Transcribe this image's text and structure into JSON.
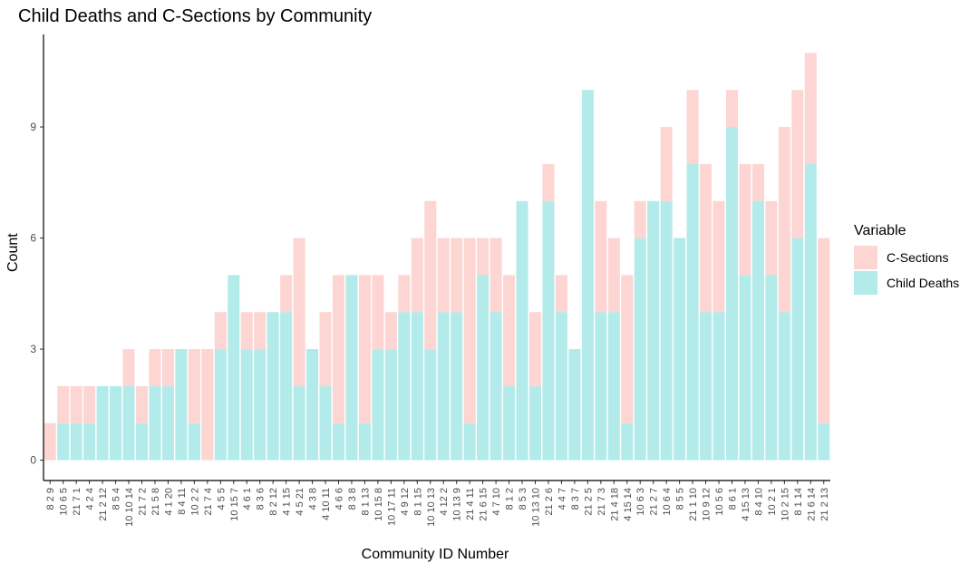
{
  "chart_data": {
    "type": "bar",
    "stacked": true,
    "title": "Child Deaths and C-Sections by Community",
    "xlabel": "Community ID Number",
    "ylabel": "Count",
    "ylim": [
      0,
      11
    ],
    "yticks": [
      0,
      3,
      6,
      9
    ],
    "grid": false,
    "legend": {
      "title": "Variable",
      "placement": "right",
      "entries": [
        "C-Sections",
        "Child Deaths"
      ]
    },
    "categories": [
      "8 2 9",
      "10 6 5",
      "21 7 1",
      "4 2 4",
      "21 2 12",
      "8 5 4",
      "10 10 14",
      "21 7 2",
      "21 5 8",
      "4 1 20",
      "8 4 11",
      "10 2 2",
      "21 7 4",
      "4 5 5",
      "10 15 7",
      "4 6 1",
      "8 3 6",
      "8 2 12",
      "4 1 15",
      "4 5 21",
      "4 3 8",
      "4 10 11",
      "4 6 6",
      "8 3 8",
      "8 1 13",
      "10 15 8",
      "10 17 11",
      "4 9 12",
      "8 1 15",
      "10 10 13",
      "4 12 2",
      "10 13 9",
      "21 4 11",
      "21 6 15",
      "4 7 10",
      "8 1 2",
      "8 5 3",
      "10 13 10",
      "21 2 6",
      "4 4 7",
      "8 3 7",
      "21 2 5",
      "21 7 3",
      "21 4 18",
      "4 15 14",
      "10 6 3",
      "21 2 7",
      "10 6 4",
      "8 5 5",
      "21 1 10",
      "10 9 12",
      "10 5 6",
      "8 6 1",
      "4 15 13",
      "8 4 10",
      "10 2 1",
      "10 2 15",
      "8 1 14",
      "21 6 14",
      "21 2 13"
    ],
    "series": [
      {
        "name": "Child Deaths",
        "color": "#b3eaea",
        "values": [
          0,
          1,
          1,
          1,
          2,
          2,
          2,
          1,
          2,
          2,
          3,
          1,
          0,
          3,
          5,
          3,
          3,
          4,
          4,
          2,
          3,
          2,
          1,
          5,
          1,
          3,
          3,
          4,
          4,
          3,
          4,
          4,
          1,
          5,
          4,
          2,
          7,
          2,
          7,
          4,
          3,
          10,
          4,
          4,
          1,
          6,
          7,
          7,
          6,
          8,
          4,
          4,
          9,
          5,
          7,
          5,
          4,
          6,
          8,
          1
        ]
      },
      {
        "name": "C-Sections",
        "color": "#fdd5d2",
        "values": [
          1,
          1,
          1,
          1,
          0,
          0,
          1,
          1,
          1,
          1,
          0,
          2,
          3,
          1,
          0,
          1,
          1,
          0,
          1,
          4,
          0,
          2,
          4,
          0,
          4,
          2,
          1,
          1,
          2,
          4,
          2,
          2,
          5,
          1,
          2,
          3,
          0,
          2,
          1,
          1,
          0,
          0,
          3,
          2,
          4,
          1,
          0,
          2,
          0,
          2,
          4,
          3,
          1,
          3,
          1,
          2,
          5,
          4,
          3,
          5
        ]
      }
    ]
  }
}
